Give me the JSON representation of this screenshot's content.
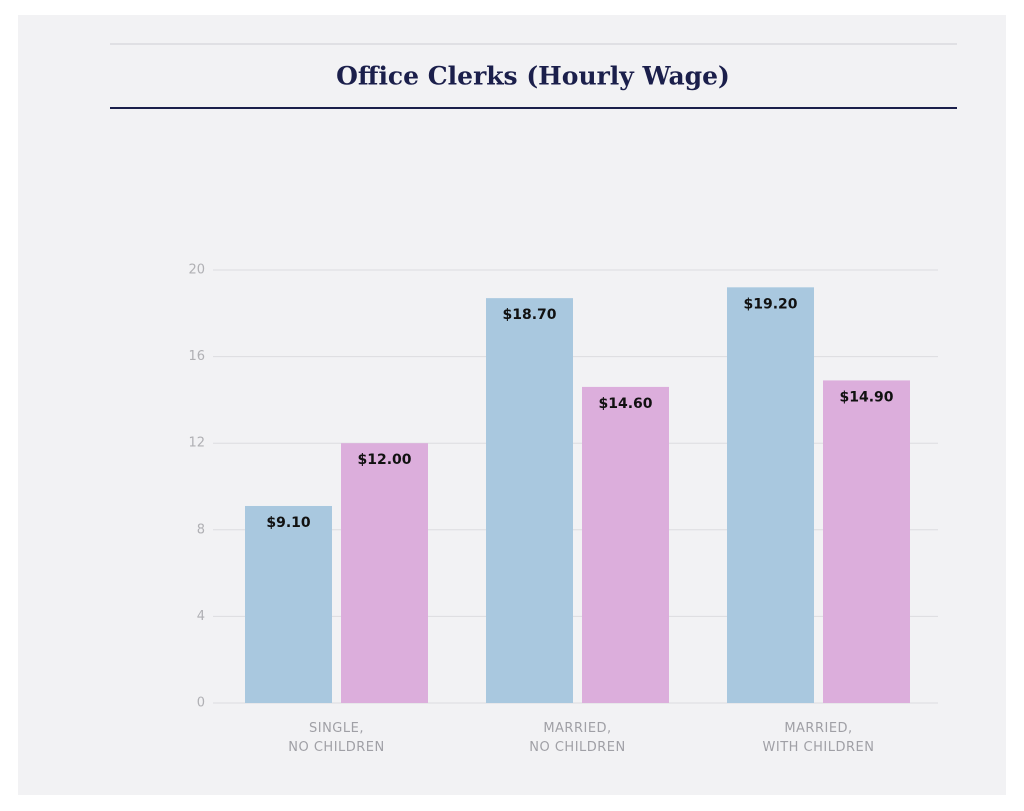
{
  "chart_data": {
    "type": "bar",
    "title": "Office Clerks (Hourly Wage)",
    "categories": [
      [
        "SINGLE,",
        "NO CHILDREN"
      ],
      [
        "MARRIED,",
        "NO CHILDREN"
      ],
      [
        "MARRIED,",
        "WITH CHILDREN"
      ]
    ],
    "series": [
      {
        "color": "#a9c8df",
        "values": [
          9.1,
          18.7,
          19.2
        ],
        "value_labels": [
          "$9.10",
          "$18.70",
          "$19.20"
        ]
      },
      {
        "color": "#dcaedc",
        "values": [
          12.0,
          14.6,
          14.9
        ],
        "value_labels": [
          "$12.00",
          "$14.60",
          "$14.90"
        ]
      }
    ],
    "ylim": [
      0,
      20
    ],
    "yticks": [
      0,
      4,
      8,
      12,
      16,
      20
    ],
    "grid": true
  }
}
